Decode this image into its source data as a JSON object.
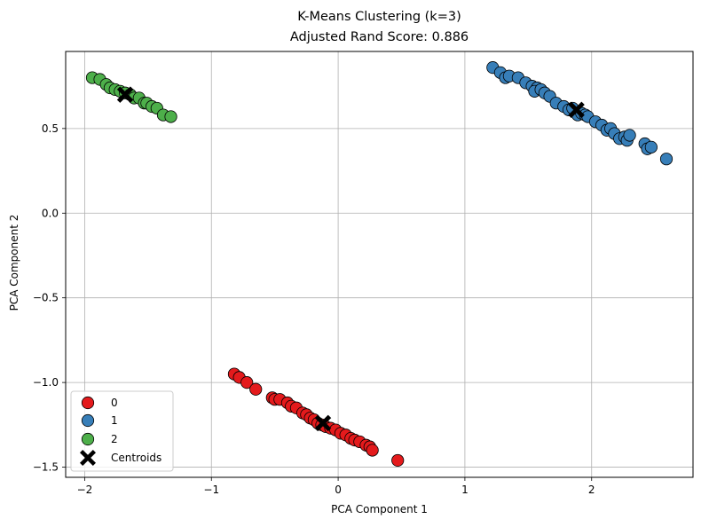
{
  "chart_data": {
    "type": "scatter",
    "title": "K-Means Clustering (k=3)",
    "subtitle": "Adjusted Rand Score: 0.886",
    "xlabel": "PCA Component 1",
    "ylabel": "PCA Component 2",
    "xlim": [
      -2.15,
      2.8
    ],
    "ylim": [
      -1.56,
      0.955
    ],
    "xticks": [
      -2,
      -1,
      0,
      1,
      2
    ],
    "yticks": [
      -1.5,
      -1.0,
      -0.5,
      0.0,
      0.5
    ],
    "xtick_labels": [
      "−2",
      "−1",
      "0",
      "1",
      "2"
    ],
    "ytick_labels": [
      "−1.5",
      "−1.0",
      "−0.5",
      "0.0",
      "0.5"
    ],
    "grid": true,
    "legend_position": "lower-left",
    "series": [
      {
        "name": "0",
        "color": "#e41a1c",
        "points": [
          [
            -0.82,
            -0.95
          ],
          [
            -0.78,
            -0.97
          ],
          [
            -0.72,
            -1.0
          ],
          [
            -0.65,
            -1.04
          ],
          [
            -0.52,
            -1.09
          ],
          [
            -0.5,
            -1.1
          ],
          [
            -0.46,
            -1.1
          ],
          [
            -0.4,
            -1.12
          ],
          [
            -0.37,
            -1.14
          ],
          [
            -0.33,
            -1.15
          ],
          [
            -0.28,
            -1.18
          ],
          [
            -0.25,
            -1.19
          ],
          [
            -0.22,
            -1.21
          ],
          [
            -0.19,
            -1.22
          ],
          [
            -0.16,
            -1.24
          ],
          [
            -0.13,
            -1.25
          ],
          [
            -0.1,
            -1.26
          ],
          [
            -0.06,
            -1.27
          ],
          [
            -0.02,
            -1.28
          ],
          [
            0.02,
            -1.3
          ],
          [
            0.06,
            -1.31
          ],
          [
            0.1,
            -1.33
          ],
          [
            0.13,
            -1.34
          ],
          [
            0.17,
            -1.35
          ],
          [
            0.22,
            -1.37
          ],
          [
            0.25,
            -1.38
          ],
          [
            0.27,
            -1.4
          ],
          [
            0.47,
            -1.46
          ]
        ]
      },
      {
        "name": "1",
        "color": "#377eb8",
        "points": [
          [
            1.22,
            0.86
          ],
          [
            1.28,
            0.83
          ],
          [
            1.32,
            0.8
          ],
          [
            1.35,
            0.81
          ],
          [
            1.42,
            0.8
          ],
          [
            1.48,
            0.77
          ],
          [
            1.53,
            0.75
          ],
          [
            1.57,
            0.74
          ],
          [
            1.55,
            0.72
          ],
          [
            1.6,
            0.73
          ],
          [
            1.63,
            0.71
          ],
          [
            1.67,
            0.69
          ],
          [
            1.72,
            0.65
          ],
          [
            1.78,
            0.63
          ],
          [
            1.82,
            0.61
          ],
          [
            1.85,
            0.62
          ],
          [
            1.89,
            0.58
          ],
          [
            1.92,
            0.59
          ],
          [
            1.95,
            0.58
          ],
          [
            1.97,
            0.57
          ],
          [
            2.03,
            0.54
          ],
          [
            2.08,
            0.52
          ],
          [
            2.12,
            0.49
          ],
          [
            2.15,
            0.5
          ],
          [
            2.18,
            0.47
          ],
          [
            2.22,
            0.44
          ],
          [
            2.26,
            0.45
          ],
          [
            2.28,
            0.43
          ],
          [
            2.3,
            0.46
          ],
          [
            2.42,
            0.41
          ],
          [
            2.44,
            0.38
          ],
          [
            2.47,
            0.39
          ],
          [
            2.59,
            0.32
          ]
        ]
      },
      {
        "name": "2",
        "color": "#4daf4a",
        "points": [
          [
            -1.94,
            0.8
          ],
          [
            -1.88,
            0.79
          ],
          [
            -1.83,
            0.76
          ],
          [
            -1.8,
            0.74
          ],
          [
            -1.76,
            0.73
          ],
          [
            -1.72,
            0.72
          ],
          [
            -1.68,
            0.71
          ],
          [
            -1.64,
            0.7
          ],
          [
            -1.61,
            0.68
          ],
          [
            -1.57,
            0.68
          ],
          [
            -1.53,
            0.65
          ],
          [
            -1.51,
            0.65
          ],
          [
            -1.47,
            0.63
          ],
          [
            -1.43,
            0.62
          ],
          [
            -1.38,
            0.58
          ],
          [
            -1.32,
            0.57
          ]
        ]
      }
    ],
    "centroids": {
      "name": "Centroids",
      "color": "#000000",
      "points": [
        [
          -1.68,
          0.7
        ],
        [
          1.88,
          0.61
        ],
        [
          -0.12,
          -1.24
        ]
      ]
    }
  }
}
